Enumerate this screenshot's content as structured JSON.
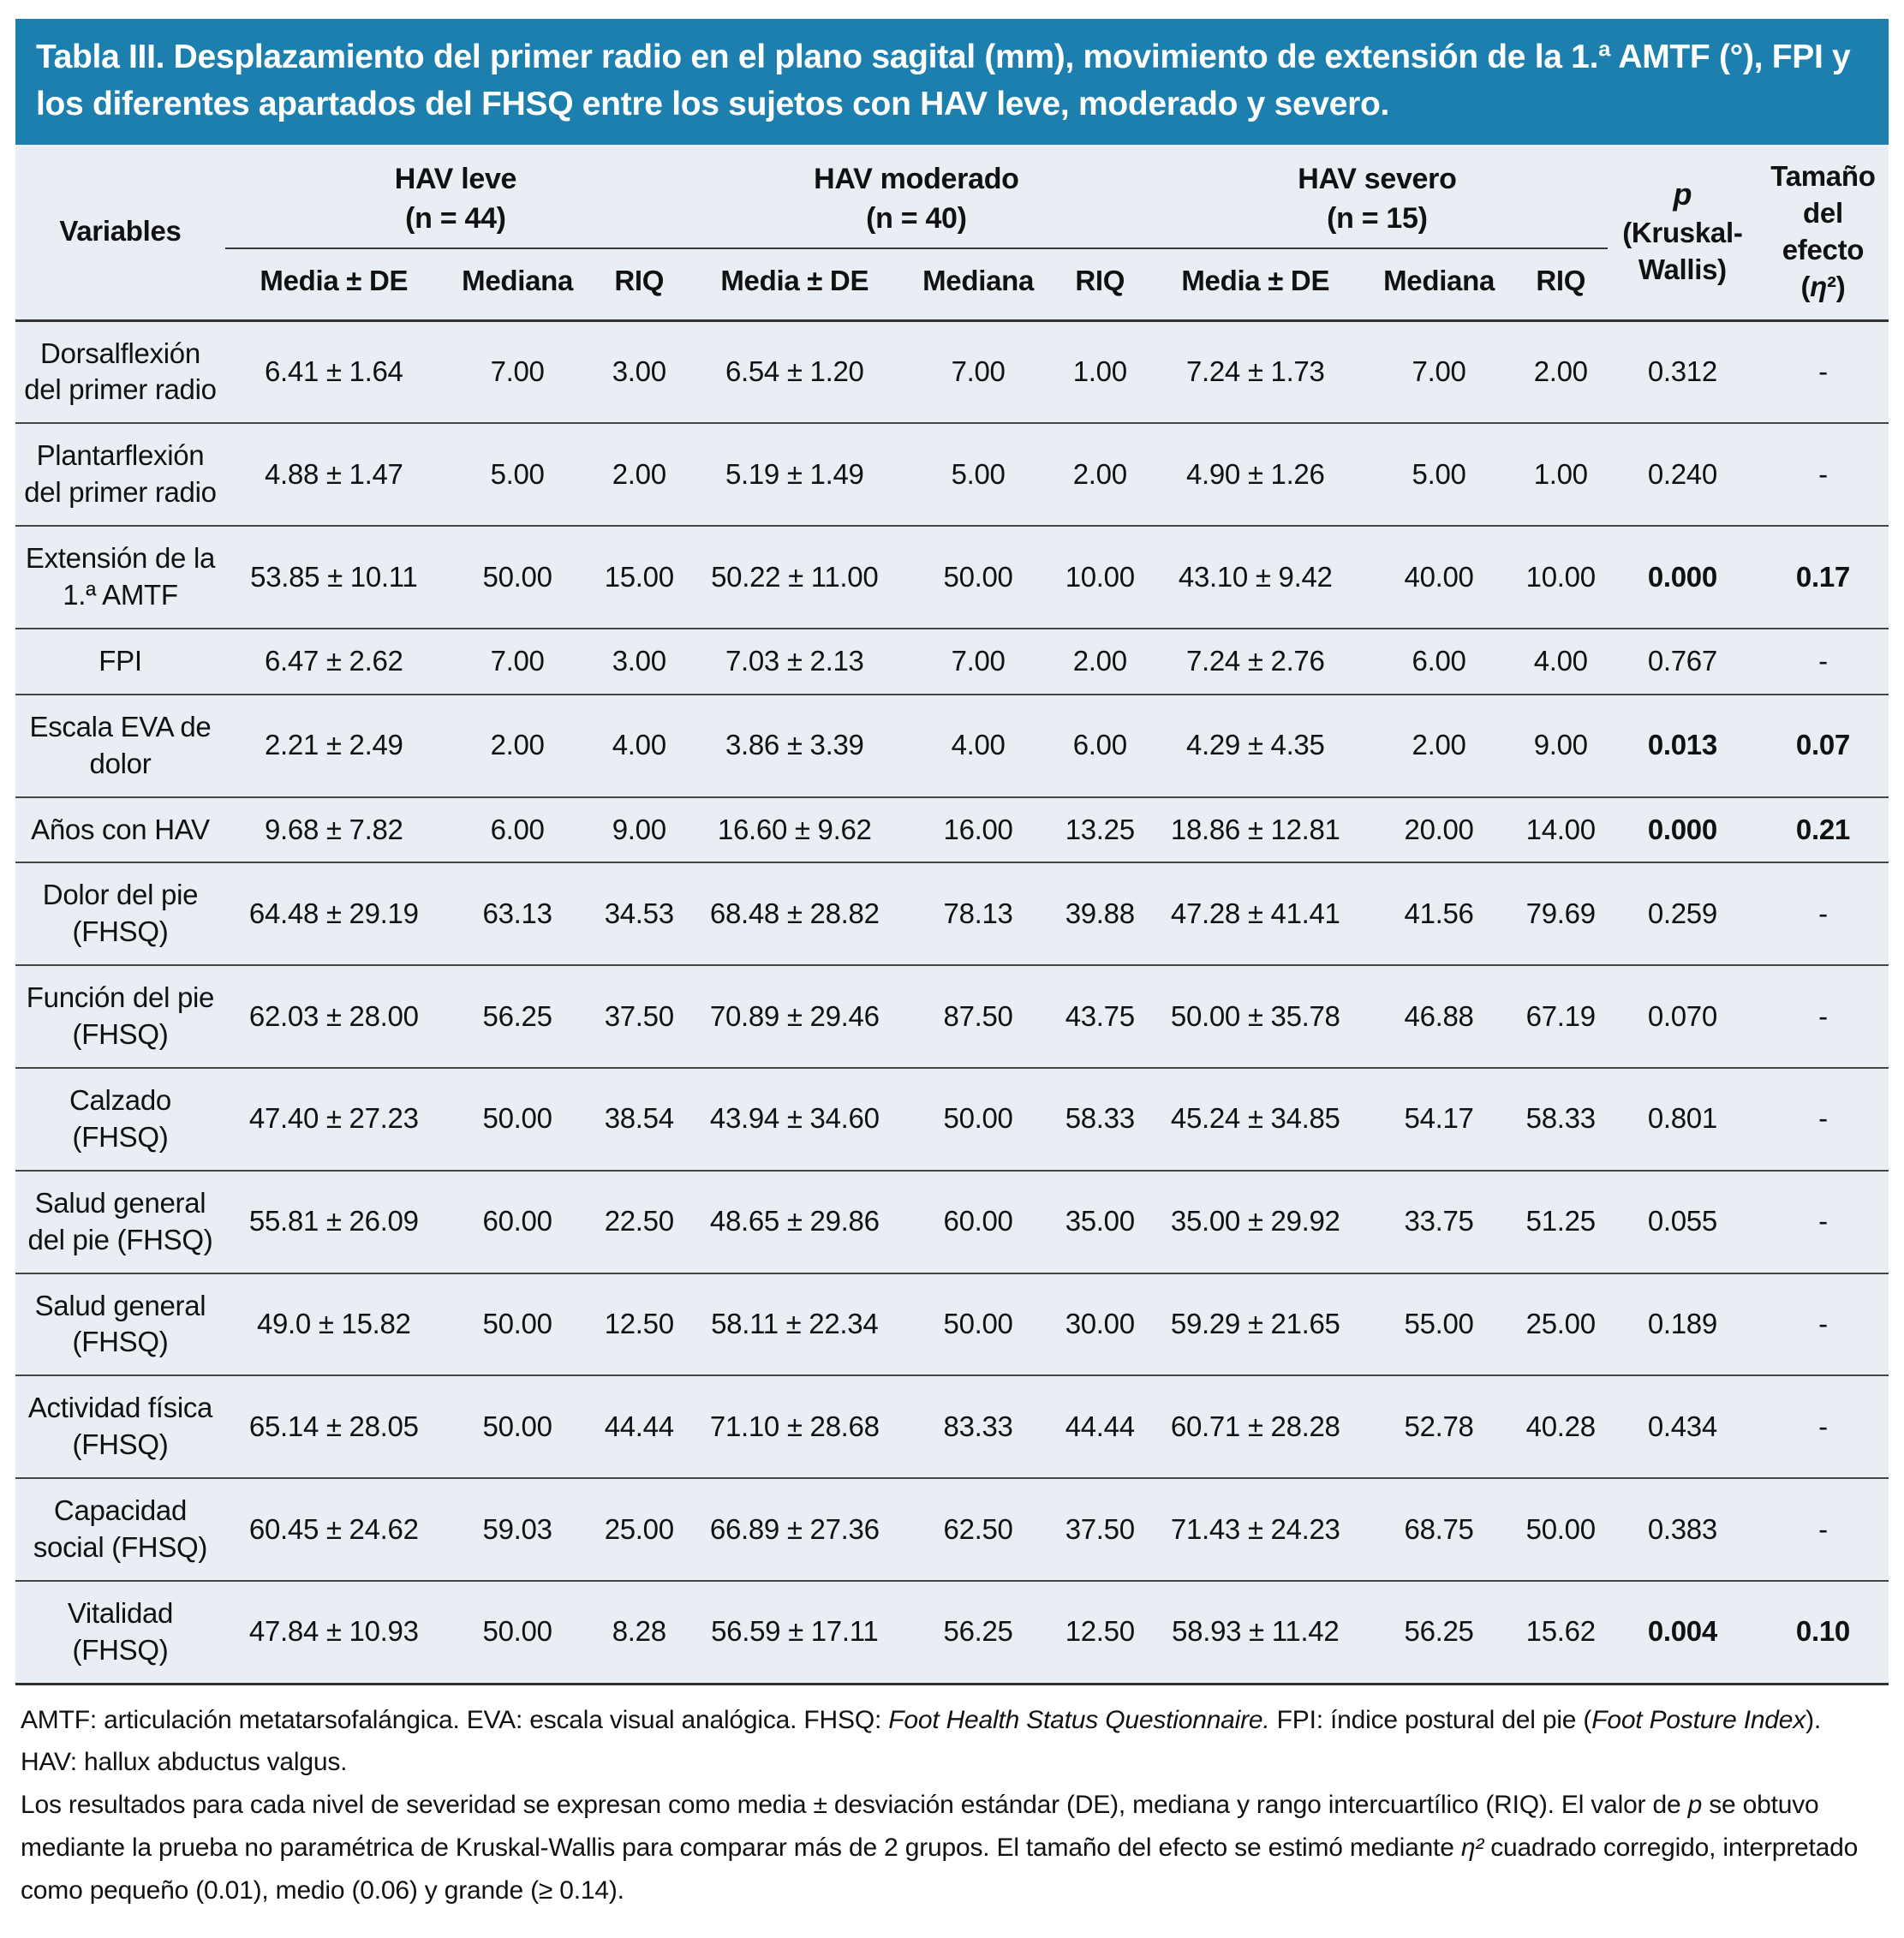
{
  "title": "Tabla III. Desplazamiento del primer radio en el plano sagital (mm), movimiento de extensión de la 1.ª AMTF (°), FPI y los diferentes apartados del FHSQ entre los sujetos con HAV leve, moderado y severo.",
  "colors": {
    "title_bar_bg": "#1d7fad",
    "title_text": "#ffffff",
    "table_bg": "#e9edf4",
    "rule": "#3a3a3a",
    "body_text": "#111111"
  },
  "table": {
    "variables_header": "Variables",
    "groups": [
      {
        "label": "HAV leve",
        "n": "(n = 44)"
      },
      {
        "label": "HAV moderado",
        "n": "(n = 40)"
      },
      {
        "label": "HAV severo",
        "n": "(n = 15)"
      }
    ],
    "subheaders": [
      "Media ± DE",
      "Mediana",
      "RIQ"
    ],
    "p_header": {
      "symbol": "p",
      "test": "(Kruskal-Wallis)"
    },
    "effect_header": {
      "label": "Tamaño del efecto",
      "unit_pre": "(",
      "unit_eta": "η",
      "unit_post": "²)"
    },
    "rows": [
      {
        "label": "Dorsalflexión del primer radio",
        "values": [
          "6.41 ± 1.64",
          "7.00",
          "3.00",
          "6.54 ± 1.20",
          "7.00",
          "1.00",
          "7.24 ± 1.73",
          "7.00",
          "2.00"
        ],
        "p": "0.312",
        "effect": "-",
        "significant": false
      },
      {
        "label": "Plantarflexión del primer radio",
        "values": [
          "4.88 ± 1.47",
          "5.00",
          "2.00",
          "5.19 ± 1.49",
          "5.00",
          "2.00",
          "4.90 ± 1.26",
          "5.00",
          "1.00"
        ],
        "p": "0.240",
        "effect": "-",
        "significant": false
      },
      {
        "label": "Extensión de la 1.ª AMTF",
        "values": [
          "53.85 ± 10.11",
          "50.00",
          "15.00",
          "50.22 ± 11.00",
          "50.00",
          "10.00",
          "43.10 ± 9.42",
          "40.00",
          "10.00"
        ],
        "p": "0.000",
        "effect": "0.17",
        "significant": true
      },
      {
        "label": "FPI",
        "values": [
          "6.47 ± 2.62",
          "7.00",
          "3.00",
          "7.03 ± 2.13",
          "7.00",
          "2.00",
          "7.24 ± 2.76",
          "6.00",
          "4.00"
        ],
        "p": "0.767",
        "effect": "-",
        "significant": false
      },
      {
        "label": "Escala EVA de dolor",
        "values": [
          "2.21 ± 2.49",
          "2.00",
          "4.00",
          "3.86 ± 3.39",
          "4.00",
          "6.00",
          "4.29 ± 4.35",
          "2.00",
          "9.00"
        ],
        "p": "0.013",
        "effect": "0.07",
        "significant": true
      },
      {
        "label": "Años con HAV",
        "values": [
          "9.68 ± 7.82",
          "6.00",
          "9.00",
          "16.60 ± 9.62",
          "16.00",
          "13.25",
          "18.86 ± 12.81",
          "20.00",
          "14.00"
        ],
        "p": "0.000",
        "effect": "0.21",
        "significant": true
      },
      {
        "label": "Dolor del pie (FHSQ)",
        "values": [
          "64.48 ± 29.19",
          "63.13",
          "34.53",
          "68.48 ± 28.82",
          "78.13",
          "39.88",
          "47.28 ± 41.41",
          "41.56",
          "79.69"
        ],
        "p": "0.259",
        "effect": "-",
        "significant": false
      },
      {
        "label": "Función del pie (FHSQ)",
        "values": [
          "62.03 ± 28.00",
          "56.25",
          "37.50",
          "70.89 ± 29.46",
          "87.50",
          "43.75",
          "50.00 ± 35.78",
          "46.88",
          "67.19"
        ],
        "p": "0.070",
        "effect": "-",
        "significant": false
      },
      {
        "label": "Calzado (FHSQ)",
        "values": [
          "47.40 ± 27.23",
          "50.00",
          "38.54",
          "43.94 ± 34.60",
          "50.00",
          "58.33",
          "45.24 ± 34.85",
          "54.17",
          "58.33"
        ],
        "p": "0.801",
        "effect": "-",
        "significant": false
      },
      {
        "label": "Salud general del pie (FHSQ)",
        "values": [
          "55.81 ± 26.09",
          "60.00",
          "22.50",
          "48.65 ± 29.86",
          "60.00",
          "35.00",
          "35.00 ± 29.92",
          "33.75",
          "51.25"
        ],
        "p": "0.055",
        "effect": "-",
        "significant": false
      },
      {
        "label": "Salud general (FHSQ)",
        "values": [
          "49.0 ± 15.82",
          "50.00",
          "12.50",
          "58.11 ± 22.34",
          "50.00",
          "30.00",
          "59.29 ± 21.65",
          "55.00",
          "25.00"
        ],
        "p": "0.189",
        "effect": "-",
        "significant": false
      },
      {
        "label": "Actividad física (FHSQ)",
        "values": [
          "65.14 ± 28.05",
          "50.00",
          "44.44",
          "71.10 ± 28.68",
          "83.33",
          "44.44",
          "60.71 ± 28.28",
          "52.78",
          "40.28"
        ],
        "p": "0.434",
        "effect": "-",
        "significant": false
      },
      {
        "label": "Capacidad social (FHSQ)",
        "values": [
          "60.45 ± 24.62",
          "59.03",
          "25.00",
          "66.89 ± 27.36",
          "62.50",
          "37.50",
          "71.43 ± 24.23",
          "68.75",
          "50.00"
        ],
        "p": "0.383",
        "effect": "-",
        "significant": false
      },
      {
        "label": "Vitalidad (FHSQ)",
        "values": [
          "47.84 ± 10.93",
          "50.00",
          "8.28",
          "56.59 ± 17.11",
          "56.25",
          "12.50",
          "58.93 ± 11.42",
          "56.25",
          "15.62"
        ],
        "p": "0.004",
        "effect": "0.10",
        "significant": true
      }
    ]
  },
  "footnotes": {
    "abbr": [
      "AMTF: articulación metatarsofalángica. EVA: escala visual analógica. FHSQ: ",
      "Foot Health Status Questionnaire.",
      " FPI: índice postural del pie (",
      "Foot Posture Index",
      "). HAV: hallux abductus valgus."
    ],
    "methods": [
      "Los resultados para cada nivel de severidad se expresan como media ± desviación estándar (DE), mediana y rango intercuartílico (RIQ). El valor de ",
      "p",
      " se obtuvo mediante la prueba no paramétrica de Kruskal-Wallis para comparar más de 2 grupos. El tamaño del efecto se estimó mediante ",
      "η²",
      " cuadrado corregido, interpretado como pequeño (0.01), medio (0.06) y grande (≥ 0.14)."
    ]
  }
}
